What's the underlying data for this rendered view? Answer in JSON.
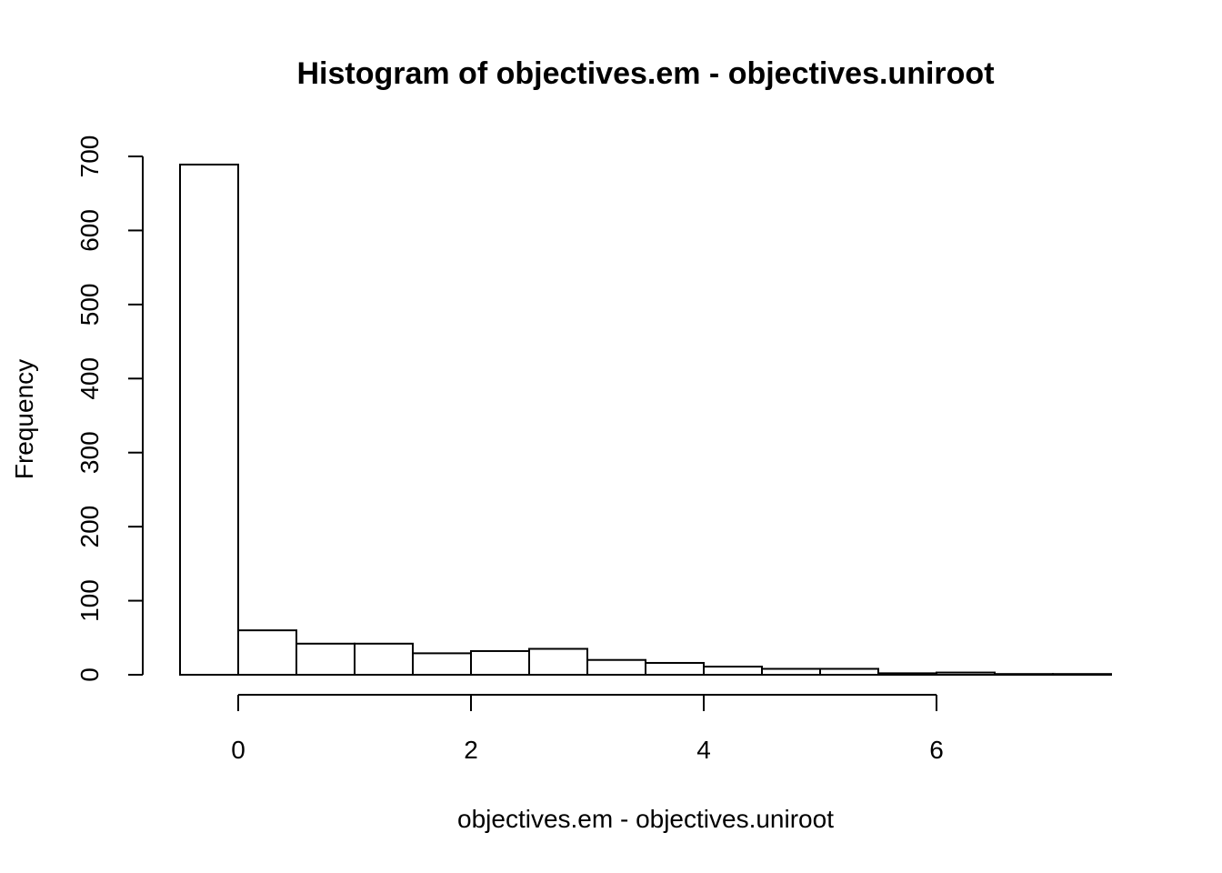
{
  "chart_data": {
    "type": "bar",
    "title": "Histogram of objectives.em - objectives.uniroot",
    "xlabel": "objectives.em - objectives.uniroot",
    "ylabel": "Frequency",
    "bin_width": 0.5,
    "bins": [
      {
        "x0": -0.5,
        "x1": 0.0,
        "count": 689
      },
      {
        "x0": 0.0,
        "x1": 0.5,
        "count": 60
      },
      {
        "x0": 0.5,
        "x1": 1.0,
        "count": 42
      },
      {
        "x0": 1.0,
        "x1": 1.5,
        "count": 42
      },
      {
        "x0": 1.5,
        "x1": 2.0,
        "count": 29
      },
      {
        "x0": 2.0,
        "x1": 2.5,
        "count": 32
      },
      {
        "x0": 2.5,
        "x1": 3.0,
        "count": 35
      },
      {
        "x0": 3.0,
        "x1": 3.5,
        "count": 20
      },
      {
        "x0": 3.5,
        "x1": 4.0,
        "count": 16
      },
      {
        "x0": 4.0,
        "x1": 4.5,
        "count": 11
      },
      {
        "x0": 4.5,
        "x1": 5.0,
        "count": 8
      },
      {
        "x0": 5.0,
        "x1": 5.5,
        "count": 8
      },
      {
        "x0": 5.5,
        "x1": 6.0,
        "count": 2
      },
      {
        "x0": 6.0,
        "x1": 6.5,
        "count": 3
      },
      {
        "x0": 6.5,
        "x1": 7.0,
        "count": 1
      },
      {
        "x0": 7.0,
        "x1": 7.5,
        "count": 1
      }
    ],
    "x_ticks": [
      "0",
      "2",
      "4",
      "6"
    ],
    "y_ticks": [
      "0",
      "100",
      "200",
      "300",
      "400",
      "500",
      "600",
      "700"
    ],
    "x_tick_values": [
      0,
      2,
      4,
      6
    ],
    "y_tick_values": [
      0,
      100,
      200,
      300,
      400,
      500,
      600,
      700
    ],
    "xlim": [
      -0.5,
      7.5
    ],
    "ylim": [
      0,
      700
    ],
    "grid": false,
    "legend": "none"
  }
}
